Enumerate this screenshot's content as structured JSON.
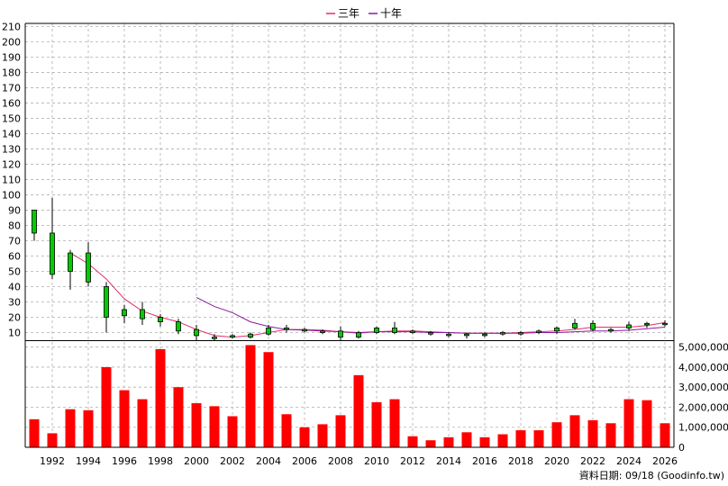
{
  "chart_data": [
    {
      "type": "candlestick",
      "legend": [
        {
          "name": "三年",
          "color": "#e0306a"
        },
        {
          "name": "十年",
          "color": "#8a1aa0"
        }
      ],
      "legend_position": "top-center",
      "ylim": [
        5,
        212
      ],
      "yticks": [
        10,
        20,
        30,
        40,
        50,
        60,
        70,
        80,
        90,
        100,
        110,
        120,
        130,
        140,
        150,
        160,
        170,
        180,
        190,
        200,
        210
      ],
      "grid": true,
      "colors": {
        "up": "#ff0000",
        "down": "#00cc00",
        "wick": "#000000"
      },
      "candles": [
        {
          "year": 1991,
          "open": 75,
          "close": 90,
          "high": 90,
          "low": 70
        },
        {
          "year": 1992,
          "open": 48,
          "close": 75,
          "high": 98,
          "low": 45
        },
        {
          "year": 1993,
          "open": 50,
          "close": 62,
          "high": 64,
          "low": 38
        },
        {
          "year": 1994,
          "open": 43,
          "close": 62,
          "high": 69,
          "low": 40
        },
        {
          "year": 1995,
          "open": 20,
          "close": 40,
          "high": 43,
          "low": 10
        },
        {
          "year": 1996,
          "open": 21,
          "close": 25,
          "high": 28,
          "low": 16
        },
        {
          "year": 1997,
          "open": 19,
          "close": 25,
          "high": 30,
          "low": 15
        },
        {
          "year": 1998,
          "open": 17,
          "close": 20,
          "high": 22,
          "low": 14
        },
        {
          "year": 1999,
          "open": 11,
          "close": 17,
          "high": 19,
          "low": 9
        },
        {
          "year": 2000,
          "open": 8,
          "close": 12,
          "high": 15,
          "low": 5
        },
        {
          "year": 2001,
          "open": 6,
          "close": 7,
          "high": 9,
          "low": 5
        },
        {
          "year": 2002,
          "open": 7,
          "close": 8,
          "high": 9,
          "low": 6
        },
        {
          "year": 2003,
          "open": 7,
          "close": 9,
          "high": 10,
          "low": 6
        },
        {
          "year": 2004,
          "open": 9,
          "close": 13,
          "high": 15,
          "low": 8
        },
        {
          "year": 2005,
          "open": 12,
          "close": 13,
          "high": 15,
          "low": 10
        },
        {
          "year": 2006,
          "open": 11,
          "close": 12,
          "high": 13,
          "low": 10
        },
        {
          "year": 2007,
          "open": 10,
          "close": 11,
          "high": 12,
          "low": 9
        },
        {
          "year": 2008,
          "open": 7,
          "close": 11,
          "high": 14,
          "low": 5
        },
        {
          "year": 2009,
          "open": 7,
          "close": 10,
          "high": 11,
          "low": 6
        },
        {
          "year": 2010,
          "open": 10,
          "close": 13,
          "high": 14,
          "low": 9
        },
        {
          "year": 2011,
          "open": 10,
          "close": 13,
          "high": 17,
          "low": 9
        },
        {
          "year": 2012,
          "open": 10,
          "close": 11,
          "high": 12,
          "low": 9
        },
        {
          "year": 2013,
          "open": 9,
          "close": 10,
          "high": 11,
          "low": 8
        },
        {
          "year": 2014,
          "open": 8,
          "close": 9,
          "high": 10,
          "low": 7
        },
        {
          "year": 2015,
          "open": 8,
          "close": 9,
          "high": 10,
          "low": 6
        },
        {
          "year": 2016,
          "open": 8,
          "close": 9,
          "high": 10,
          "low": 7
        },
        {
          "year": 2017,
          "open": 9,
          "close": 10,
          "high": 11,
          "low": 8
        },
        {
          "year": 2018,
          "open": 9,
          "close": 10,
          "high": 11,
          "low": 8
        },
        {
          "year": 2019,
          "open": 10,
          "close": 11,
          "high": 12,
          "low": 9
        },
        {
          "year": 2020,
          "open": 11,
          "close": 13,
          "high": 14,
          "low": 9
        },
        {
          "year": 2021,
          "open": 13,
          "close": 16,
          "high": 19,
          "low": 12
        },
        {
          "year": 2022,
          "open": 12,
          "close": 16,
          "high": 18,
          "low": 11
        },
        {
          "year": 2023,
          "open": 11,
          "close": 12,
          "high": 13,
          "low": 10
        },
        {
          "year": 2024,
          "open": 13,
          "close": 15,
          "high": 17,
          "low": 11
        },
        {
          "year": 2025,
          "open": 15,
          "close": 16,
          "high": 17,
          "low": 13
        },
        {
          "year": 2026,
          "open": 16,
          "close": 16,
          "high": 18,
          "low": 14
        }
      ],
      "series": [
        {
          "name": "三年",
          "values": [
            [
              1993,
              62
            ],
            [
              1994,
              55
            ],
            [
              1995,
              45
            ],
            [
              1996,
              32
            ],
            [
              1997,
              24
            ],
            [
              1998,
              20
            ],
            [
              1999,
              17
            ],
            [
              2000,
              12
            ],
            [
              2001,
              8
            ],
            [
              2002,
              7
            ],
            [
              2003,
              8
            ],
            [
              2004,
              10
            ],
            [
              2005,
              12
            ],
            [
              2006,
              12
            ],
            [
              2007,
              11.5
            ],
            [
              2008,
              10.5
            ],
            [
              2009,
              9.5
            ],
            [
              2010,
              10.5
            ],
            [
              2011,
              11
            ],
            [
              2012,
              11
            ],
            [
              2013,
              10.5
            ],
            [
              2014,
              10
            ],
            [
              2015,
              9.5
            ],
            [
              2016,
              9.5
            ],
            [
              2017,
              9.5
            ],
            [
              2018,
              10
            ],
            [
              2019,
              10.5
            ],
            [
              2020,
              11
            ],
            [
              2021,
              12
            ],
            [
              2022,
              13.5
            ],
            [
              2023,
              13.5
            ],
            [
              2024,
              13.5
            ],
            [
              2025,
              14.5
            ],
            [
              2026,
              16.5
            ]
          ]
        },
        {
          "name": "十年",
          "values": [
            [
              2000,
              33
            ],
            [
              2001,
              27
            ],
            [
              2002,
              23
            ],
            [
              2003,
              17
            ],
            [
              2004,
              14
            ],
            [
              2005,
              12
            ],
            [
              2006,
              11.5
            ],
            [
              2007,
              11
            ],
            [
              2008,
              10.5
            ],
            [
              2009,
              10
            ],
            [
              2010,
              10.5
            ],
            [
              2011,
              10.5
            ],
            [
              2012,
              10.5
            ],
            [
              2013,
              10
            ],
            [
              2014,
              10
            ],
            [
              2015,
              9.5
            ],
            [
              2016,
              9.5
            ],
            [
              2017,
              9.5
            ],
            [
              2018,
              9.5
            ],
            [
              2019,
              10
            ],
            [
              2020,
              10
            ],
            [
              2021,
              10.5
            ],
            [
              2022,
              11
            ],
            [
              2023,
              11
            ],
            [
              2024,
              11.5
            ],
            [
              2025,
              12.5
            ],
            [
              2026,
              13.5
            ]
          ]
        }
      ]
    },
    {
      "type": "bar",
      "bar_color": "#ff0000",
      "ylim": [
        0,
        5300000
      ],
      "ytick_values": [
        0,
        1000000,
        2000000,
        3000000,
        4000000,
        5000000
      ],
      "yticks": [
        "0",
        "1,000,000",
        "2,000,000",
        "3,000,000",
        "4,000,000",
        "5,000,000"
      ],
      "grid": true,
      "x": [
        1991,
        1992,
        1993,
        1994,
        1995,
        1996,
        1997,
        1998,
        1999,
        2000,
        2001,
        2002,
        2003,
        2004,
        2005,
        2006,
        2007,
        2008,
        2009,
        2010,
        2011,
        2012,
        2013,
        2014,
        2015,
        2016,
        2017,
        2018,
        2019,
        2020,
        2021,
        2022,
        2023,
        2024,
        2025,
        2026
      ],
      "values": [
        1400000,
        700000,
        1900000,
        1850000,
        4000000,
        2850000,
        2400000,
        4900000,
        3000000,
        2200000,
        2050000,
        1550000,
        5100000,
        4750000,
        1650000,
        1000000,
        1150000,
        1600000,
        3600000,
        2250000,
        2400000,
        550000,
        350000,
        500000,
        750000,
        500000,
        650000,
        850000,
        850000,
        1250000,
        1600000,
        1350000,
        1200000,
        2400000,
        2350000,
        1200000
      ]
    }
  ],
  "xticks": [
    "1992",
    "1994",
    "1996",
    "1998",
    "2000",
    "2002",
    "2004",
    "2006",
    "2008",
    "2010",
    "2012",
    "2014",
    "2016",
    "2018",
    "2020",
    "2022",
    "2024",
    "2026"
  ],
  "xtick_years": [
    1992,
    1994,
    1996,
    1998,
    2000,
    2002,
    2004,
    2006,
    2008,
    2010,
    2012,
    2014,
    2016,
    2018,
    2020,
    2022,
    2024,
    2026
  ],
  "credit": "資料日期: 09/18  (Goodinfo.tw)"
}
